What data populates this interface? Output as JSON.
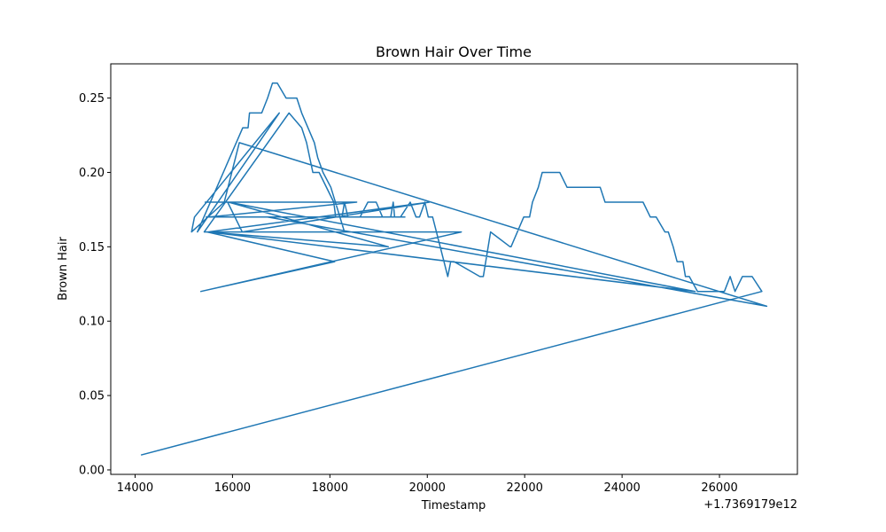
{
  "chart_data": {
    "type": "line",
    "title": "Brown Hair Over Time",
    "xlabel": "Timestamp",
    "ylabel": "Brown Hair",
    "x_offset_label": "+1.7369179e12",
    "xlim": [
      13500,
      27600
    ],
    "ylim": [
      -0.003,
      0.273
    ],
    "x_ticks": [
      14000,
      16000,
      18000,
      20000,
      22000,
      24000,
      26000
    ],
    "y_ticks": [
      0.0,
      0.05,
      0.1,
      0.15,
      0.2,
      0.25
    ],
    "y_tick_labels": [
      "0.00",
      "0.05",
      "0.10",
      "0.15",
      "0.20",
      "0.25"
    ],
    "grid": false,
    "color": "#1f77b4",
    "series": [
      {
        "x": [
          14120,
          26870,
          26670,
          26470,
          26320,
          26220,
          26100,
          25980,
          25550,
          25380,
          25300,
          25250,
          25130,
          25050,
          24950,
          24880,
          24700,
          24580,
          24430,
          24300,
          24250,
          23650,
          23550,
          23480,
          23220,
          23050,
          22870,
          22720,
          22360,
          22280,
          22160,
          22100,
          21980,
          21720,
          21700,
          21300,
          21150,
          21080,
          20550,
          20480,
          20420,
          20110,
          20020,
          19950,
          19840,
          19770,
          19650,
          19450,
          19330,
          19300,
          19250,
          19160,
          19080,
          18950,
          18780,
          18620,
          18370,
          18300,
          18250,
          18120,
          18080,
          17780,
          17650,
          17520,
          17420,
          17160,
          15420,
          18300,
          18020,
          17860,
          17750,
          17680,
          17420,
          17320,
          17100,
          16920,
          16820,
          16720,
          16600,
          16350,
          16320,
          16300,
          16210,
          15280,
          16960,
          15220,
          15160,
          15830,
          16140,
          26970,
          16720,
          15460,
          19540,
          15520,
          18550,
          15440,
          15900,
          16200,
          20040,
          15500,
          25500,
          15920,
          19200,
          15480,
          18100,
          15350,
          20700,
          15480,
          20560
        ],
        "y": [
          0.01,
          0.12,
          0.13,
          0.13,
          0.12,
          0.13,
          0.12,
          0.12,
          0.12,
          0.13,
          0.13,
          0.14,
          0.14,
          0.15,
          0.16,
          0.16,
          0.17,
          0.17,
          0.18,
          0.18,
          0.18,
          0.18,
          0.19,
          0.19,
          0.19,
          0.19,
          0.19,
          0.2,
          0.2,
          0.19,
          0.18,
          0.17,
          0.17,
          0.15,
          0.15,
          0.16,
          0.13,
          0.13,
          0.14,
          0.14,
          0.13,
          0.17,
          0.17,
          0.18,
          0.17,
          0.17,
          0.18,
          0.17,
          0.17,
          0.18,
          0.17,
          0.17,
          0.17,
          0.18,
          0.18,
          0.17,
          0.17,
          0.18,
          0.17,
          0.17,
          0.18,
          0.2,
          0.2,
          0.22,
          0.23,
          0.24,
          0.16,
          0.16,
          0.19,
          0.2,
          0.21,
          0.22,
          0.24,
          0.25,
          0.25,
          0.26,
          0.26,
          0.25,
          0.24,
          0.24,
          0.23,
          0.23,
          0.23,
          0.16,
          0.24,
          0.17,
          0.16,
          0.18,
          0.22,
          0.11,
          0.17,
          0.17,
          0.17,
          0.17,
          0.18,
          0.18,
          0.18,
          0.16,
          0.18,
          0.16,
          0.12,
          0.18,
          0.15,
          0.16,
          0.14,
          0.12,
          0.16,
          0.16,
          0.16
        ]
      }
    ]
  }
}
